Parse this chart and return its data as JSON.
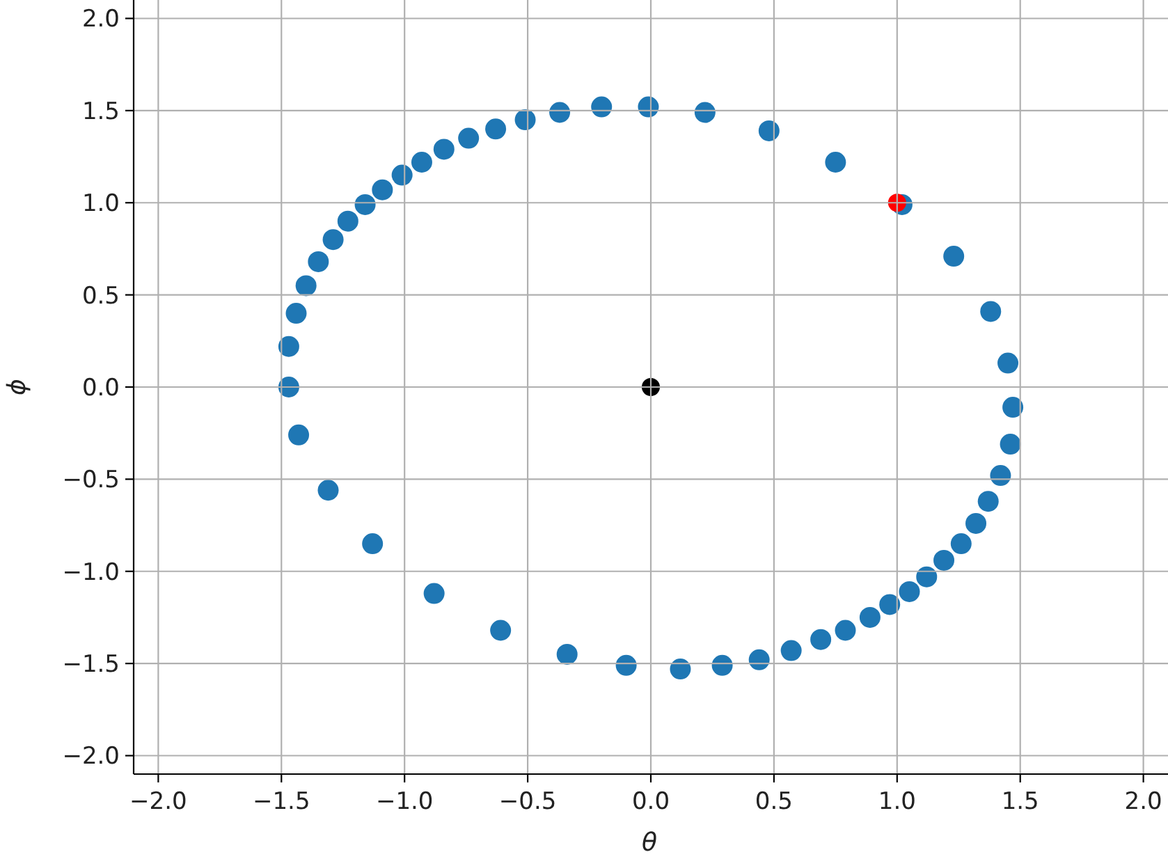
{
  "chart_data": {
    "type": "scatter",
    "xlabel": "θ",
    "ylabel": "ϕ",
    "xlim": [
      -2.1,
      2.1
    ],
    "ylim": [
      -2.1,
      2.1
    ],
    "xticks": [
      {
        "value": -2,
        "label": "−2.0"
      },
      {
        "value": -1.5,
        "label": "−1.5"
      },
      {
        "value": -1,
        "label": "−1.0"
      },
      {
        "value": -0.5,
        "label": "−0.5"
      },
      {
        "value": 0,
        "label": "0.0"
      },
      {
        "value": 0.5,
        "label": "0.5"
      },
      {
        "value": 1,
        "label": "1.0"
      },
      {
        "value": 1.5,
        "label": "1.5"
      },
      {
        "value": 2,
        "label": "2.0"
      }
    ],
    "yticks": [
      {
        "value": -2,
        "label": "−2.0"
      },
      {
        "value": -1.5,
        "label": "−1.5"
      },
      {
        "value": -1,
        "label": "−1.0"
      },
      {
        "value": -0.5,
        "label": "−0.5"
      },
      {
        "value": 0,
        "label": "0.0"
      },
      {
        "value": 0.5,
        "label": "0.5"
      },
      {
        "value": 1,
        "label": "1.0"
      },
      {
        "value": 1.5,
        "label": "1.5"
      },
      {
        "value": 2,
        "label": "2.0"
      }
    ],
    "grid": true,
    "marker": "circle",
    "series": [
      {
        "color": "#1f77b4",
        "x": [
          -1.47,
          -1.47,
          -1.44,
          -1.4,
          -1.35,
          -1.29,
          -1.23,
          -1.16,
          -1.09,
          -1.01,
          -0.93,
          -0.84,
          -0.74,
          -0.63,
          -0.51,
          -0.37,
          -0.2,
          -0.01,
          0.22,
          0.48,
          0.75,
          1.02,
          1.23,
          1.38,
          1.45,
          1.47,
          1.46,
          1.42,
          1.37,
          1.32,
          1.26,
          1.19,
          1.12,
          1.05,
          0.97,
          0.89,
          0.79,
          0.69,
          0.57,
          0.44,
          0.29,
          0.12,
          -0.1,
          -0.34,
          -0.61,
          -0.88,
          -1.13,
          -1.31,
          -1.43
        ],
        "values": [
          0.0,
          0.22,
          0.4,
          0.55,
          0.68,
          0.8,
          0.9,
          0.99,
          1.07,
          1.15,
          1.22,
          1.29,
          1.35,
          1.4,
          1.45,
          1.49,
          1.52,
          1.52,
          1.49,
          1.39,
          1.22,
          0.99,
          0.71,
          0.41,
          0.13,
          -0.11,
          -0.31,
          -0.48,
          -0.62,
          -0.74,
          -0.85,
          -0.94,
          -1.03,
          -1.11,
          -1.18,
          -1.25,
          -1.32,
          -1.37,
          -1.43,
          -1.48,
          -1.51,
          -1.53,
          -1.51,
          -1.45,
          -1.32,
          -1.12,
          -0.85,
          -0.56,
          -0.26
        ]
      },
      {
        "color": "#ff0000",
        "x": [
          1
        ],
        "values": [
          1
        ]
      },
      {
        "color": "#000000",
        "x": [
          0
        ],
        "values": [
          0
        ]
      }
    ]
  }
}
